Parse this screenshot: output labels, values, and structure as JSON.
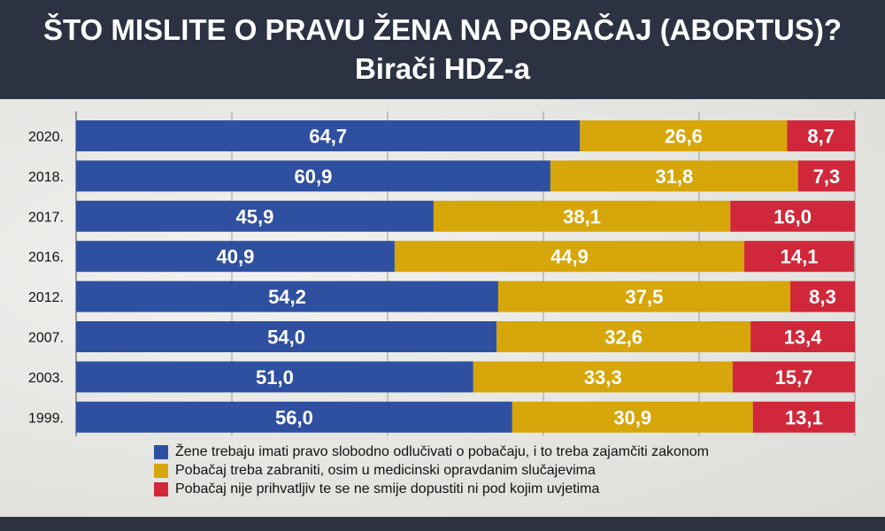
{
  "header": {
    "title": "ŠTO MISLITE O PRAVU ŽENA NA POBAČAJ (ABORTUS)?",
    "subtitle": "Birači HDZ-a"
  },
  "colors": {
    "series1": "#2f50a0",
    "series2": "#d6a60a",
    "series3": "#d0283a"
  },
  "chart_data": {
    "type": "bar",
    "orientation": "horizontal",
    "stacked": true,
    "title": "ŠTO MISLITE O PRAVU ŽENA NA POBAČAJ (ABORTUS)?",
    "subtitle": "Birači HDZ-a",
    "categories": [
      "2020.",
      "2018.",
      "2017.",
      "2016.",
      "2012.",
      "2007.",
      "2003.",
      "1999."
    ],
    "series": [
      {
        "name": "Žene trebaju imati pravo slobodno odlučivati o pobačaju, i to treba zajamčiti zakonom",
        "values": [
          64.7,
          60.9,
          45.9,
          40.9,
          54.2,
          54.0,
          51.0,
          56.0
        ],
        "labels": [
          "64,7",
          "60,9",
          "45,9",
          "40,9",
          "54,2",
          "54,0",
          "51,0",
          "56,0"
        ]
      },
      {
        "name": "Pobačaj treba zabraniti, osim u medicinski opravdanim slučajevima",
        "values": [
          26.6,
          31.8,
          38.1,
          44.9,
          37.5,
          32.6,
          33.3,
          30.9
        ],
        "labels": [
          "26,6",
          "31,8",
          "38,1",
          "44,9",
          "37,5",
          "32,6",
          "33,3",
          "30,9"
        ]
      },
      {
        "name": "Pobačaj nije prihvatljiv te se ne smije dopustiti ni pod kojim uvjetima",
        "values": [
          8.7,
          7.3,
          16.0,
          14.1,
          8.3,
          13.4,
          15.7,
          13.1
        ],
        "labels": [
          "8,7",
          "7,3",
          "16,0",
          "14,1",
          "8,3",
          "13,4",
          "15,7",
          "13,1"
        ]
      }
    ],
    "xlim": [
      0,
      100
    ],
    "grid": true,
    "legend_position": "bottom"
  }
}
